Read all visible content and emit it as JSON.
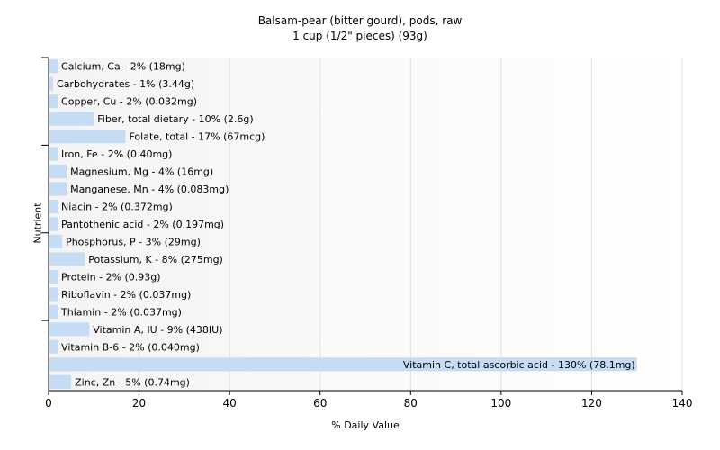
{
  "title": "Balsam-pear (bitter gourd), pods, raw",
  "subtitle": "1 cup (1/2\" pieces) (93g)",
  "chart_data": {
    "type": "bar",
    "orientation": "horizontal",
    "title": "Balsam-pear (bitter gourd), pods, raw",
    "subtitle": "1 cup (1/2\" pieces) (93g)",
    "xlabel": "% Daily Value",
    "ylabel": "Nutrient",
    "xlim": [
      0,
      140
    ],
    "xticks": [
      0,
      20,
      40,
      60,
      80,
      100,
      120,
      140
    ],
    "grid": true,
    "bar_color": "#c6dcf5",
    "categories": [
      "Calcium, Ca",
      "Carbohydrates",
      "Copper, Cu",
      "Fiber, total dietary",
      "Folate, total",
      "Iron, Fe",
      "Magnesium, Mg",
      "Manganese, Mn",
      "Niacin",
      "Pantothenic acid",
      "Phosphorus, P",
      "Potassium, K",
      "Protein",
      "Riboflavin",
      "Thiamin",
      "Vitamin A, IU",
      "Vitamin B-6",
      "Vitamin C, total ascorbic acid",
      "Zinc, Zn"
    ],
    "values": [
      2,
      1,
      2,
      10,
      17,
      2,
      4,
      4,
      2,
      2,
      3,
      8,
      2,
      2,
      2,
      9,
      2,
      130,
      5
    ],
    "labels": [
      "Calcium, Ca - 2% (18mg)",
      "Carbohydrates - 1% (3.44g)",
      "Copper, Cu - 2% (0.032mg)",
      "Fiber, total dietary - 10% (2.6g)",
      "Folate, total - 17% (67mcg)",
      "Iron, Fe - 2% (0.40mg)",
      "Magnesium, Mg - 4% (16mg)",
      "Manganese, Mn - 4% (0.083mg)",
      "Niacin - 2% (0.372mg)",
      "Pantothenic acid - 2% (0.197mg)",
      "Phosphorus, P - 3% (29mg)",
      "Potassium, K - 8% (275mg)",
      "Protein - 2% (0.93g)",
      "Riboflavin - 2% (0.037mg)",
      "Thiamin - 2% (0.037mg)",
      "Vitamin A, IU - 9% (438IU)",
      "Vitamin B-6 - 2% (0.040mg)",
      "Vitamin C, total ascorbic acid - 130% (78.1mg)",
      "Zinc, Zn - 5% (0.74mg)"
    ]
  }
}
